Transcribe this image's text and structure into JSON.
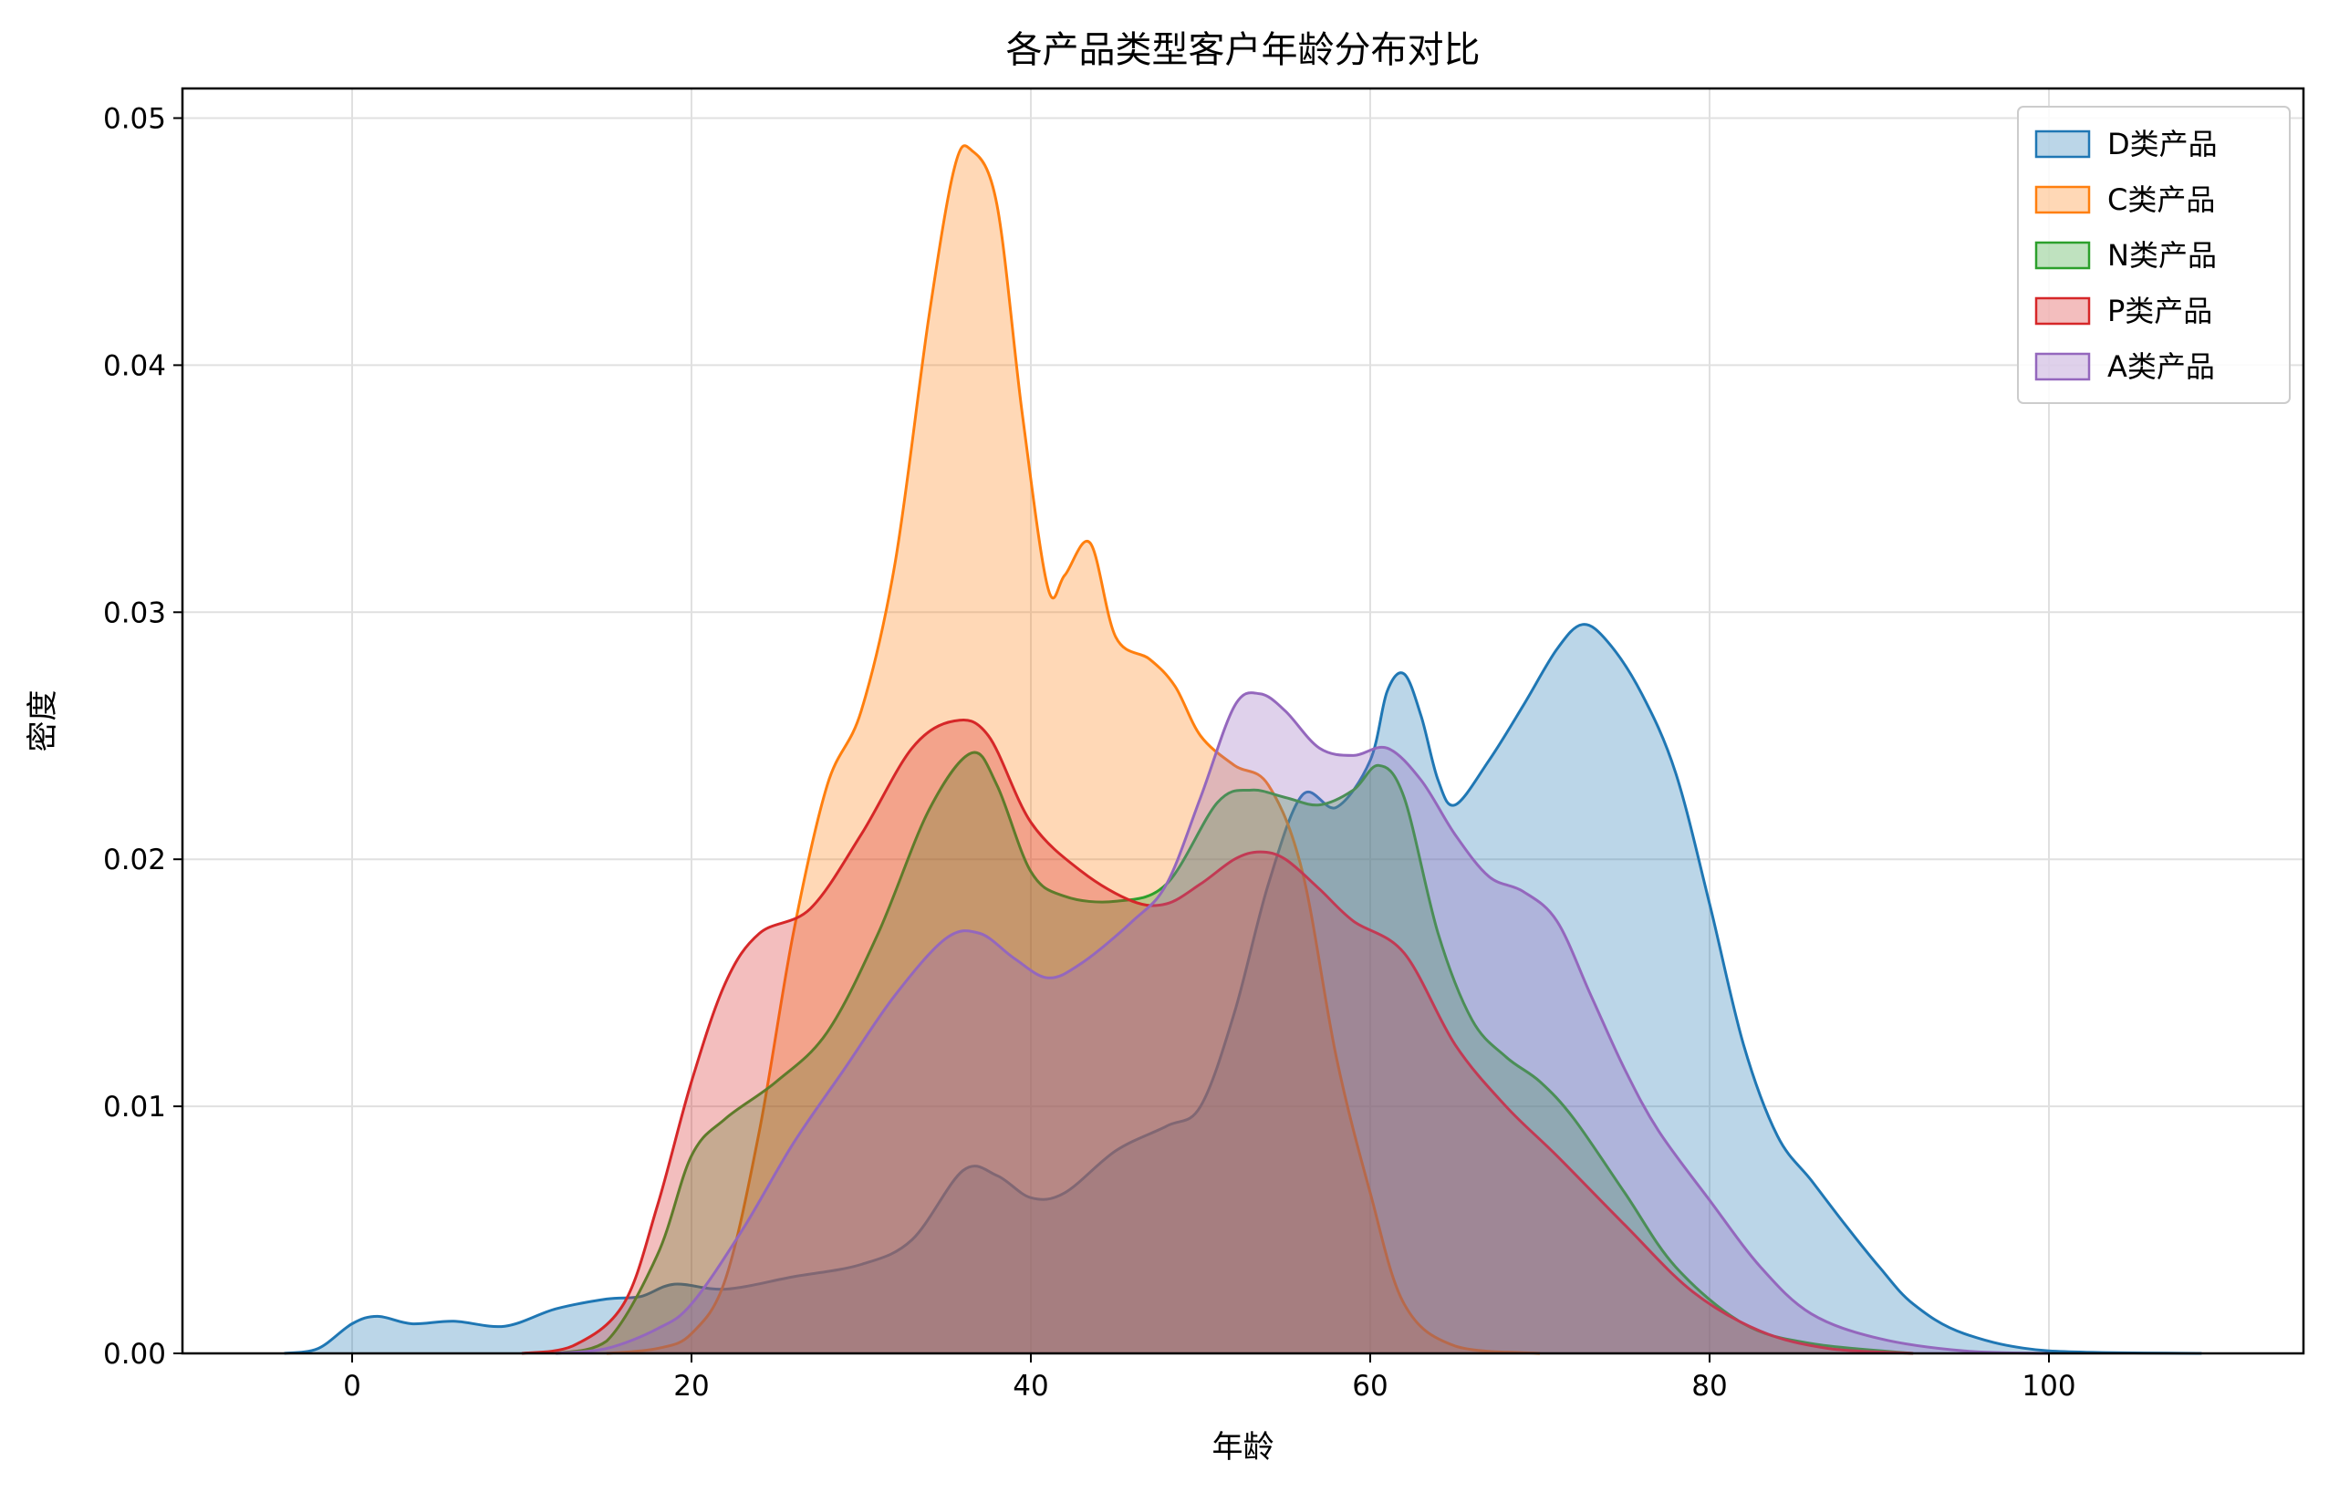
{
  "chart_data": {
    "type": "area",
    "title": "各产品类型客户年龄分布对比",
    "xlabel": "年龄",
    "ylabel": "密度",
    "xlim": [
      -10,
      115
    ],
    "ylim": [
      0,
      0.0512
    ],
    "xticks": [
      0,
      20,
      40,
      60,
      80,
      100
    ],
    "yticks": [
      0.0,
      0.01,
      0.02,
      0.03,
      0.04,
      0.05
    ],
    "ytick_labels": [
      "0.00",
      "0.01",
      "0.02",
      "0.03",
      "0.04",
      "0.05"
    ],
    "grid": true,
    "legend": "top-right",
    "series": [
      {
        "name": "D类产品",
        "color": "#1f77b4",
        "points": [
          [
            -4,
            0
          ],
          [
            -2,
            0.0002
          ],
          [
            0,
            0.0012
          ],
          [
            1.5,
            0.0015
          ],
          [
            3.5,
            0.0012
          ],
          [
            6,
            0.0013
          ],
          [
            9,
            0.0011
          ],
          [
            12,
            0.0018
          ],
          [
            15,
            0.0022
          ],
          [
            17,
            0.0023
          ],
          [
            19,
            0.0028
          ],
          [
            22,
            0.0026
          ],
          [
            26,
            0.0031
          ],
          [
            30,
            0.0036
          ],
          [
            33,
            0.0046
          ],
          [
            36,
            0.0074
          ],
          [
            38,
            0.0072
          ],
          [
            40,
            0.0063
          ],
          [
            42,
            0.0065
          ],
          [
            45,
            0.0082
          ],
          [
            48,
            0.0092
          ],
          [
            50,
            0.01
          ],
          [
            52,
            0.0138
          ],
          [
            54,
            0.019
          ],
          [
            56,
            0.0226
          ],
          [
            58,
            0.0221
          ],
          [
            60,
            0.024
          ],
          [
            61,
            0.0268
          ],
          [
            62,
            0.0275
          ],
          [
            63,
            0.0258
          ],
          [
            64,
            0.0232
          ],
          [
            65,
            0.0222
          ],
          [
            67,
            0.024
          ],
          [
            69,
            0.0262
          ],
          [
            71,
            0.0285
          ],
          [
            72.5,
            0.0295
          ],
          [
            74,
            0.0288
          ],
          [
            76,
            0.0267
          ],
          [
            78,
            0.0235
          ],
          [
            80,
            0.0182
          ],
          [
            82,
            0.0125
          ],
          [
            84,
            0.0088
          ],
          [
            86,
            0.007
          ],
          [
            88,
            0.0052
          ],
          [
            90,
            0.0035
          ],
          [
            92,
            0.002
          ],
          [
            95,
            0.0008
          ],
          [
            100,
            0.0001
          ],
          [
            109,
            0
          ]
        ]
      },
      {
        "name": "C类产品",
        "color": "#ff7f0e",
        "points": [
          [
            15,
            0
          ],
          [
            18,
            0.0002
          ],
          [
            20,
            0.0008
          ],
          [
            22,
            0.003
          ],
          [
            24,
            0.009
          ],
          [
            26,
            0.017
          ],
          [
            28,
            0.023
          ],
          [
            30,
            0.026
          ],
          [
            32,
            0.032
          ],
          [
            34,
            0.042
          ],
          [
            35.5,
            0.048
          ],
          [
            36.5,
            0.0487
          ],
          [
            38,
            0.0465
          ],
          [
            39.5,
            0.038
          ],
          [
            41,
            0.031
          ],
          [
            42,
            0.0315
          ],
          [
            43.5,
            0.0328
          ],
          [
            45,
            0.029
          ],
          [
            47,
            0.0281
          ],
          [
            48.5,
            0.027
          ],
          [
            50,
            0.025
          ],
          [
            52,
            0.0238
          ],
          [
            54,
            0.023
          ],
          [
            56,
            0.0195
          ],
          [
            58,
            0.012
          ],
          [
            60,
            0.0065
          ],
          [
            62,
            0.002
          ],
          [
            65,
            0.0003
          ],
          [
            70,
            0
          ]
        ]
      },
      {
        "name": "N类产品",
        "color": "#2ca02c",
        "points": [
          [
            12,
            0
          ],
          [
            15,
            0.0005
          ],
          [
            18,
            0.004
          ],
          [
            20,
            0.008
          ],
          [
            22,
            0.0095
          ],
          [
            25,
            0.011
          ],
          [
            28,
            0.013
          ],
          [
            31,
            0.017
          ],
          [
            34,
            0.022
          ],
          [
            36.5,
            0.0243
          ],
          [
            38,
            0.023
          ],
          [
            40,
            0.0195
          ],
          [
            42,
            0.0185
          ],
          [
            45,
            0.0183
          ],
          [
            48,
            0.019
          ],
          [
            51,
            0.0223
          ],
          [
            53,
            0.0228
          ],
          [
            55,
            0.0225
          ],
          [
            57,
            0.0222
          ],
          [
            59,
            0.0228
          ],
          [
            60.5,
            0.0238
          ],
          [
            62,
            0.0225
          ],
          [
            64,
            0.017
          ],
          [
            66,
            0.0135
          ],
          [
            68,
            0.012
          ],
          [
            70,
            0.011
          ],
          [
            72,
            0.0095
          ],
          [
            75,
            0.0065
          ],
          [
            78,
            0.0035
          ],
          [
            82,
            0.0012
          ],
          [
            86,
            0.0004
          ],
          [
            92,
            0
          ]
        ]
      },
      {
        "name": "P类产品",
        "color": "#d62728",
        "points": [
          [
            10,
            0
          ],
          [
            13,
            0.0003
          ],
          [
            16,
            0.002
          ],
          [
            18,
            0.006
          ],
          [
            20,
            0.011
          ],
          [
            22,
            0.015
          ],
          [
            24,
            0.017
          ],
          [
            27,
            0.018
          ],
          [
            30,
            0.021
          ],
          [
            33,
            0.0245
          ],
          [
            35.5,
            0.0256
          ],
          [
            37.5,
            0.025
          ],
          [
            40,
            0.0215
          ],
          [
            43,
            0.0195
          ],
          [
            46,
            0.0183
          ],
          [
            48,
            0.0182
          ],
          [
            50,
            0.019
          ],
          [
            52,
            0.02
          ],
          [
            53.5,
            0.0203
          ],
          [
            55,
            0.02
          ],
          [
            57,
            0.0188
          ],
          [
            59,
            0.0175
          ],
          [
            62,
            0.0162
          ],
          [
            65,
            0.0125
          ],
          [
            68,
            0.01
          ],
          [
            71,
            0.008
          ],
          [
            75,
            0.0052
          ],
          [
            79,
            0.0025
          ],
          [
            83,
            0.0009
          ],
          [
            87,
            0.0002
          ],
          [
            92,
            0
          ]
        ]
      },
      {
        "name": "A类产品",
        "color": "#9467bd",
        "points": [
          [
            12,
            0
          ],
          [
            15,
            0.0002
          ],
          [
            18,
            0.001
          ],
          [
            20,
            0.002
          ],
          [
            23,
            0.005
          ],
          [
            26,
            0.0085
          ],
          [
            29,
            0.0115
          ],
          [
            32,
            0.0145
          ],
          [
            35,
            0.0168
          ],
          [
            37,
            0.017
          ],
          [
            39,
            0.016
          ],
          [
            41,
            0.0152
          ],
          [
            43,
            0.0158
          ],
          [
            46,
            0.0175
          ],
          [
            48,
            0.019
          ],
          [
            50,
            0.0225
          ],
          [
            52,
            0.0262
          ],
          [
            53.5,
            0.0267
          ],
          [
            55,
            0.026
          ],
          [
            57,
            0.0245
          ],
          [
            59,
            0.0242
          ],
          [
            61,
            0.0245
          ],
          [
            63,
            0.0232
          ],
          [
            65,
            0.021
          ],
          [
            67,
            0.0193
          ],
          [
            69,
            0.0187
          ],
          [
            71,
            0.0175
          ],
          [
            73,
            0.0145
          ],
          [
            75,
            0.0115
          ],
          [
            77,
            0.009
          ],
          [
            80,
            0.0062
          ],
          [
            83,
            0.0035
          ],
          [
            86,
            0.0016
          ],
          [
            90,
            0.0006
          ],
          [
            95,
            0.0001
          ],
          [
            100,
            0
          ]
        ]
      }
    ]
  }
}
